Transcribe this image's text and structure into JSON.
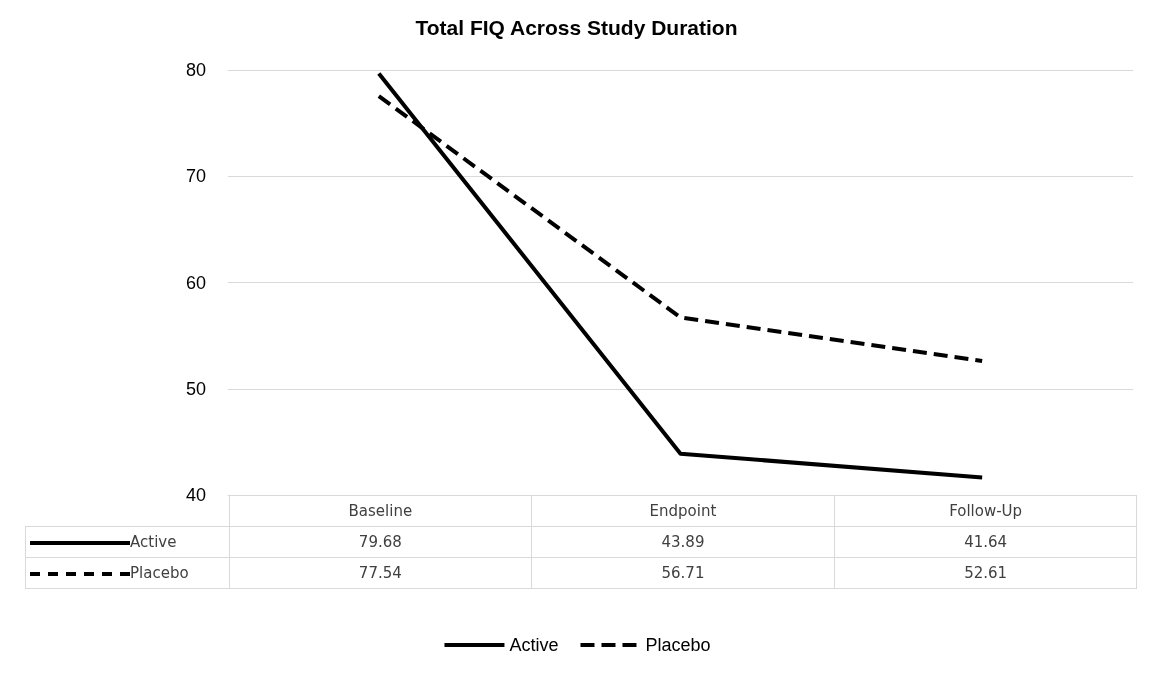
{
  "chart_data": {
    "type": "line",
    "title": "Total FIQ Across Study Duration",
    "categories": [
      "Baseline",
      "Endpoint",
      "Follow-Up"
    ],
    "series": [
      {
        "name": "Active",
        "color": "#000000",
        "line_style": "solid",
        "values": [
          79.68,
          43.89,
          41.64
        ]
      },
      {
        "name": "Placebo",
        "color": "#000000",
        "line_style": "dashed",
        "values": [
          77.54,
          56.71,
          52.61
        ]
      }
    ],
    "ylim": [
      40,
      80
    ],
    "yticks": [
      40,
      50,
      60,
      70,
      80
    ],
    "grid": "y",
    "legend": "bottom",
    "marker": "none",
    "data_labels": true
  }
}
